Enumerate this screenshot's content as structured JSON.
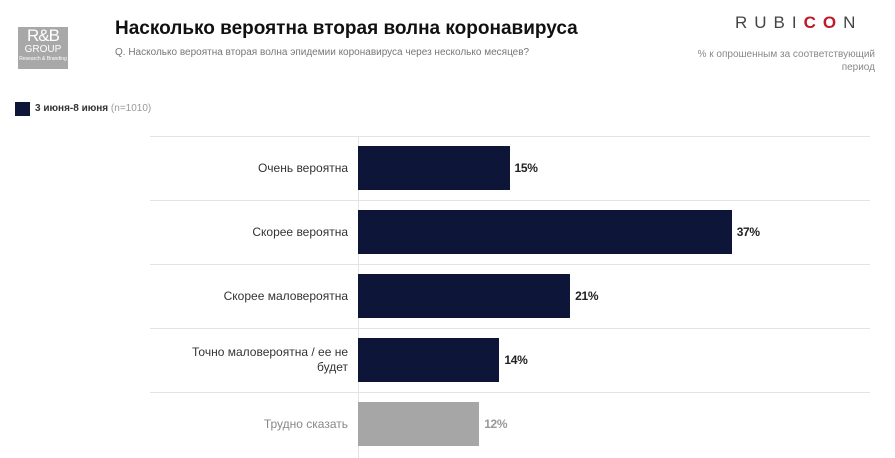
{
  "logo": {
    "main": "R&B",
    "group": "GROUP",
    "tagline": "Research & Branding"
  },
  "brand": {
    "parts": [
      "RUBI",
      "CO",
      "N"
    ]
  },
  "chart_data": {
    "type": "bar",
    "orientation": "horizontal",
    "title": "Насколько вероятна вторая волна коронавируса",
    "subtitle": "Q. Насколько вероятна вторая волна эпидемии коронавируса через несколько месяцев?",
    "note": "% к опрошенным за соответствующий период",
    "legend_note": "(n=1010)",
    "categories": [
      "Очень вероятна",
      "Скорее вероятна",
      "Скорее маловероятна",
      "Точно маловероятна / ее не будет",
      "Трудно сказать"
    ],
    "series": [
      {
        "name": "3 июня-8 июня",
        "color": "#0d1538",
        "colors": [
          "#0d1538",
          "#0d1538",
          "#0d1538",
          "#0d1538",
          "#a6a6a6"
        ],
        "values": [
          15,
          37,
          21,
          14,
          12
        ],
        "value_labels": [
          "15%",
          "37%",
          "21%",
          "14%",
          "12%"
        ]
      }
    ]
  }
}
